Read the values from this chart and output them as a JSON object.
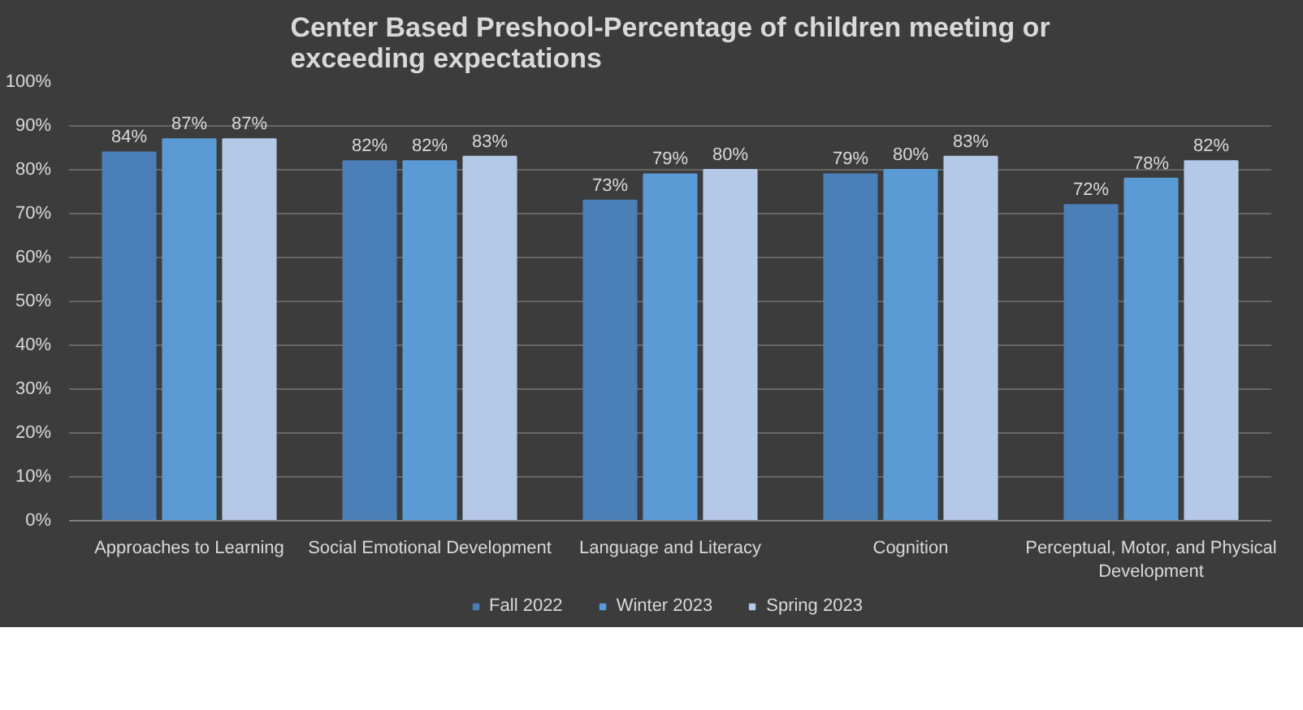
{
  "chart_data": {
    "type": "bar",
    "title": "Center Based Preshool-Percentage of children meeting or exceeding expectations",
    "categories": [
      "Approaches to Learning",
      "Social Emotional Development",
      "Language and Literacy",
      "Cognition",
      "Perceptual, Motor, and Physical Development"
    ],
    "series": [
      {
        "name": "Fall 2022",
        "color": "#4a7fb8",
        "values": [
          84,
          82,
          73,
          79,
          72
        ],
        "value_labels": [
          "84%",
          "82%",
          "73%",
          "79%",
          "72%"
        ]
      },
      {
        "name": "Winter 2023",
        "color": "#5b9bd5",
        "values": [
          87,
          82,
          79,
          80,
          78
        ],
        "value_labels": [
          "87%",
          "82%",
          "79%",
          "80%",
          "78%"
        ]
      },
      {
        "name": "Spring 2023",
        "color": "#b4c9e8",
        "values": [
          87,
          83,
          80,
          83,
          82
        ],
        "value_labels": [
          "87%",
          "83%",
          "80%",
          "83%",
          "82%"
        ]
      }
    ],
    "ylim": [
      0,
      100
    ],
    "yticks": [
      {
        "value": 0,
        "label": "0%"
      },
      {
        "value": 10,
        "label": "10%"
      },
      {
        "value": 20,
        "label": "20%"
      },
      {
        "value": 30,
        "label": "30%"
      },
      {
        "value": 40,
        "label": "40%"
      },
      {
        "value": 50,
        "label": "50%"
      },
      {
        "value": 60,
        "label": "60%"
      },
      {
        "value": 70,
        "label": "70%"
      },
      {
        "value": 80,
        "label": "80%"
      },
      {
        "value": 90,
        "label": "90%"
      },
      {
        "value": 100,
        "label": "100%"
      }
    ],
    "grid": "y",
    "legend": "bottom"
  }
}
